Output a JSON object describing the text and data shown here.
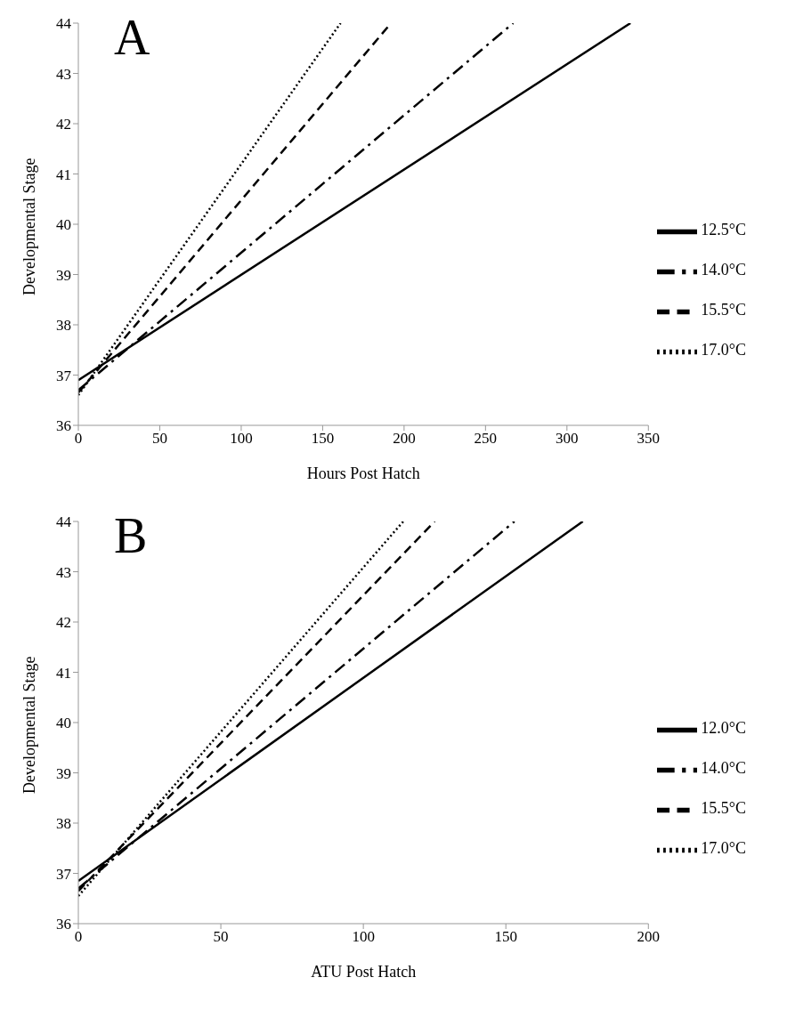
{
  "chart_data": [
    {
      "type": "line",
      "title": "A",
      "xlabel": "Hours Post Hatch",
      "ylabel": "Developmental Stage",
      "xlim": [
        0,
        350
      ],
      "xticks": [
        0,
        50,
        100,
        150,
        200,
        250,
        300,
        350
      ],
      "ylim": [
        36,
        44
      ],
      "yticks": [
        36,
        37,
        38,
        39,
        40,
        41,
        42,
        43,
        44
      ],
      "grid": false,
      "legend": "right",
      "marker": "none",
      "series": [
        {
          "name": "17.0°C",
          "color": "#000000",
          "line_style": "dotted",
          "x": [
            0,
            161
          ],
          "values": [
            36.6,
            44
          ]
        },
        {
          "name": "15.5°C",
          "color": "#000000",
          "line_style": "dashed",
          "x": [
            0,
            192
          ],
          "values": [
            36.65,
            44
          ]
        },
        {
          "name": "14.0°C",
          "color": "#000000",
          "line_style": "dashdot",
          "x": [
            0,
            267
          ],
          "values": [
            36.7,
            44
          ]
        },
        {
          "name": "12.5°C",
          "color": "#000000",
          "line_style": "solid",
          "x": [
            0,
            339
          ],
          "values": [
            36.9,
            44
          ]
        }
      ]
    },
    {
      "type": "line",
      "title": "B",
      "xlabel": "ATU Post Hatch",
      "ylabel": "Developmental Stage",
      "xlim": [
        0,
        200
      ],
      "xticks": [
        0,
        50,
        100,
        150,
        200
      ],
      "ylim": [
        36,
        44
      ],
      "yticks": [
        36,
        37,
        38,
        39,
        40,
        41,
        42,
        43,
        44
      ],
      "grid": false,
      "legend": "right",
      "marker": "none",
      "series": [
        {
          "name": "17.0°C",
          "color": "#000000",
          "line_style": "dotted",
          "x": [
            0,
            114
          ],
          "values": [
            36.55,
            44
          ]
        },
        {
          "name": "15.5°C",
          "color": "#000000",
          "line_style": "dashed",
          "x": [
            0,
            125
          ],
          "values": [
            36.65,
            44
          ]
        },
        {
          "name": "14.0°C",
          "color": "#000000",
          "line_style": "dashdot",
          "x": [
            0,
            153
          ],
          "values": [
            36.7,
            44
          ]
        },
        {
          "name": "12.0°C",
          "color": "#000000",
          "line_style": "solid",
          "x": [
            0,
            177
          ],
          "values": [
            36.85,
            44
          ]
        }
      ]
    }
  ]
}
